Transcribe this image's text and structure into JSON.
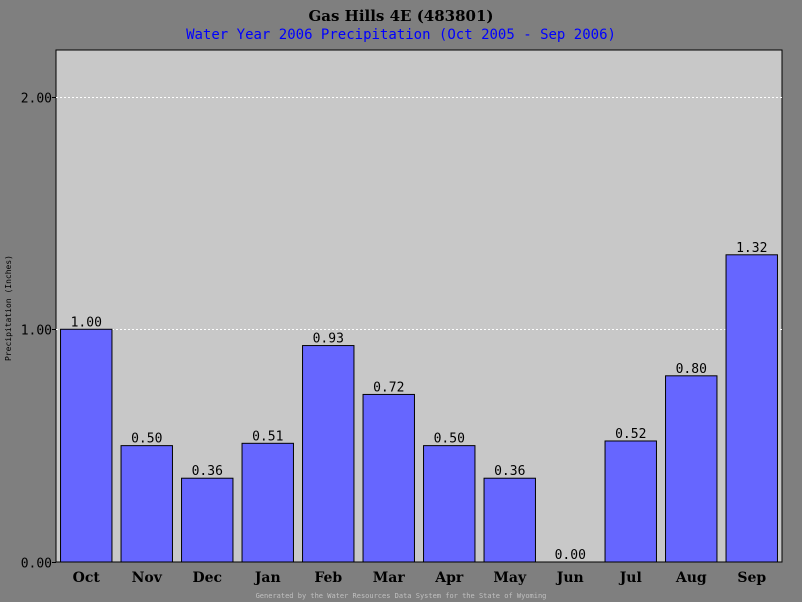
{
  "chart_data": {
    "type": "bar",
    "title": "Gas Hills 4E (483801)",
    "subtitle": "Water Year 2006 Precipitation (Oct 2005 - Sep 2006)",
    "xlabel": "",
    "ylabel": "Precipitation (Inches)",
    "categories": [
      "Oct",
      "Nov",
      "Dec",
      "Jan",
      "Feb",
      "Mar",
      "Apr",
      "May",
      "Jun",
      "Jul",
      "Aug",
      "Sep"
    ],
    "values": [
      1.0,
      0.5,
      0.36,
      0.51,
      0.93,
      0.72,
      0.5,
      0.36,
      0.0,
      0.52,
      0.8,
      1.32
    ],
    "value_labels": [
      "1.00",
      "0.50",
      "0.36",
      "0.51",
      "0.93",
      "0.72",
      "0.50",
      "0.36",
      "0.00",
      "0.52",
      "0.80",
      "1.32"
    ],
    "yticks": [
      0,
      1,
      2
    ],
    "ytick_labels": [
      "0.00",
      "1.00",
      "2.00"
    ],
    "ylim": [
      0,
      2.2
    ],
    "grid": true,
    "footer": "Generated by the Water Resources Data System for the State of Wyoming"
  },
  "colors": {
    "background": "#7f7f7f",
    "plot_area": "#c8c8c8",
    "bar_fill": "#6666ff",
    "bar_outline": "#000000",
    "grid": "#ffffff",
    "subtitle": "#0000ff",
    "footer": "#c0c0c0"
  }
}
